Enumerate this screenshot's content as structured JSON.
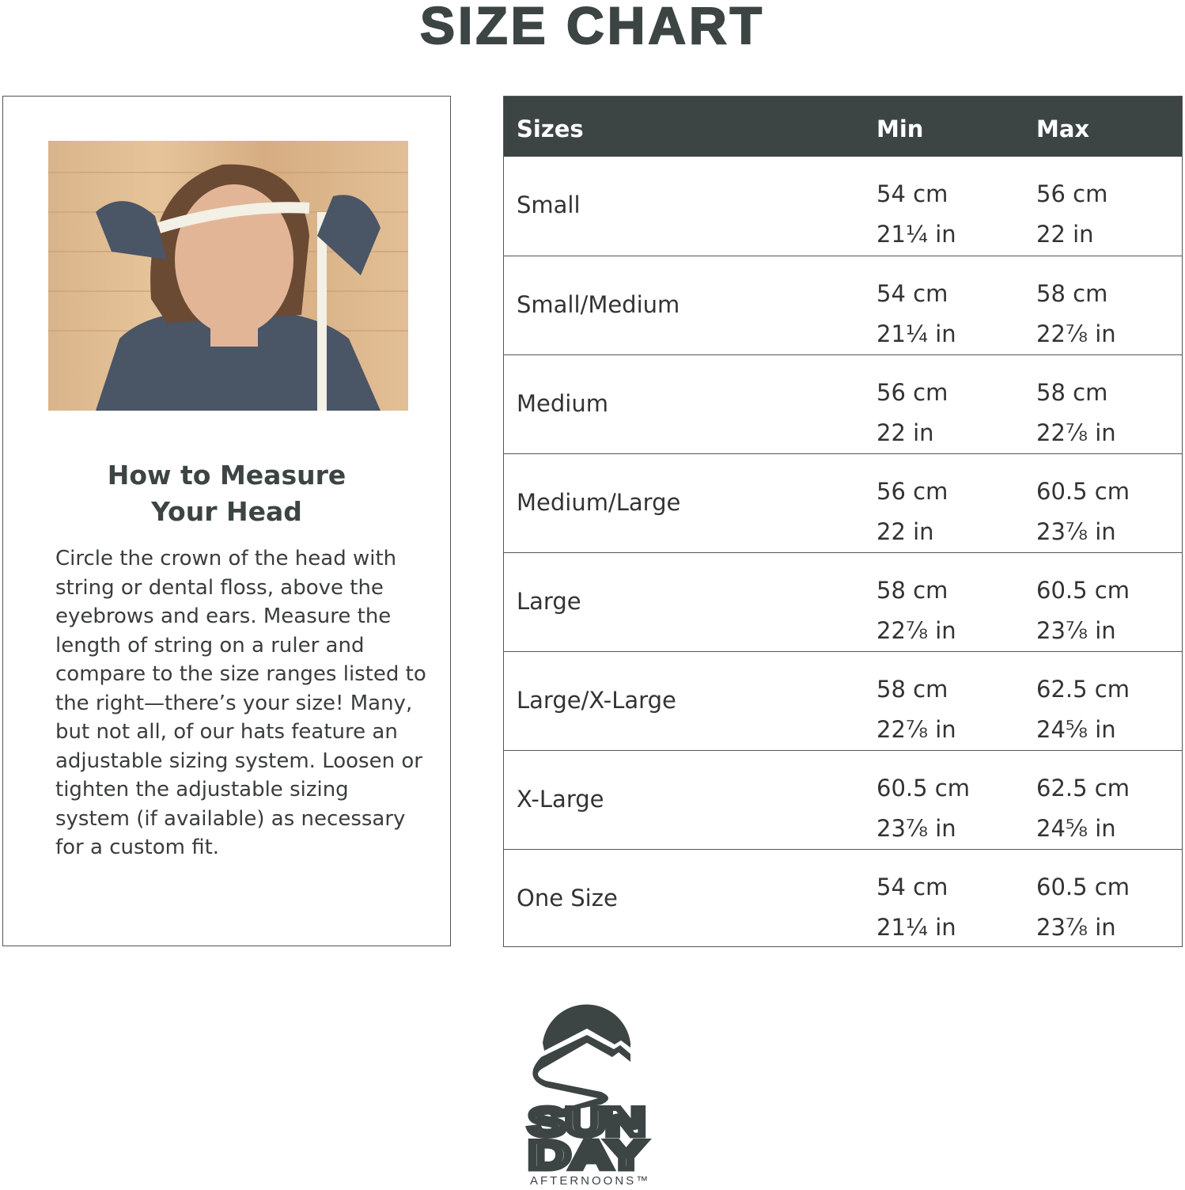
{
  "title": "SIZE CHART",
  "measure": {
    "heading_line1": "How to Measure",
    "heading_line2": "Your Head",
    "body": "Circle the crown of the head with string or dental floss, above the eyebrows and ears. Measure the length of string on a ruler and compare to the size ranges listed to the right—there’s your size! Many, but not all, of our hats feature an adjustable sizing system. Loosen or tighten the adjustable sizing system (if available) as necessary for a custom fit."
  },
  "table": {
    "headers": [
      "Sizes",
      "Min",
      "Max"
    ],
    "rows": [
      {
        "size": "Small",
        "min_cm": "54 cm",
        "min_in": "21¼ in",
        "max_cm": "56 cm",
        "max_in": "22 in"
      },
      {
        "size": "Small/Medium",
        "min_cm": "54 cm",
        "min_in": "21¼ in",
        "max_cm": "58 cm",
        "max_in": "22⅞ in"
      },
      {
        "size": "Medium",
        "min_cm": "56 cm",
        "min_in": "22 in",
        "max_cm": "58 cm",
        "max_in": "22⅞ in"
      },
      {
        "size": "Medium/Large",
        "min_cm": "56 cm",
        "min_in": "22 in",
        "max_cm": "60.5 cm",
        "max_in": "23⅞ in"
      },
      {
        "size": "Large",
        "min_cm": "58 cm",
        "min_in": "22⅞ in",
        "max_cm": "60.5 cm",
        "max_in": "23⅞ in"
      },
      {
        "size": "Large/X-Large",
        "min_cm": "58 cm",
        "min_in": "22⅞ in",
        "max_cm": "62.5 cm",
        "max_in": "24⅝ in"
      },
      {
        "size": "X-Large",
        "min_cm": "60.5 cm",
        "min_in": "23⅞ in",
        "max_cm": "62.5 cm",
        "max_in": "24⅝ in"
      },
      {
        "size": "One Size",
        "min_cm": "54 cm",
        "min_in": "21¼ in",
        "max_cm": "60.5 cm",
        "max_in": "23⅞ in"
      }
    ]
  },
  "logo": {
    "line1": "SUN",
    "line2": "DAY",
    "line3": "AFTERNOONS™"
  },
  "colors": {
    "header_bg": "#3d4444",
    "text": "#3a3d3d",
    "border": "#555555"
  }
}
